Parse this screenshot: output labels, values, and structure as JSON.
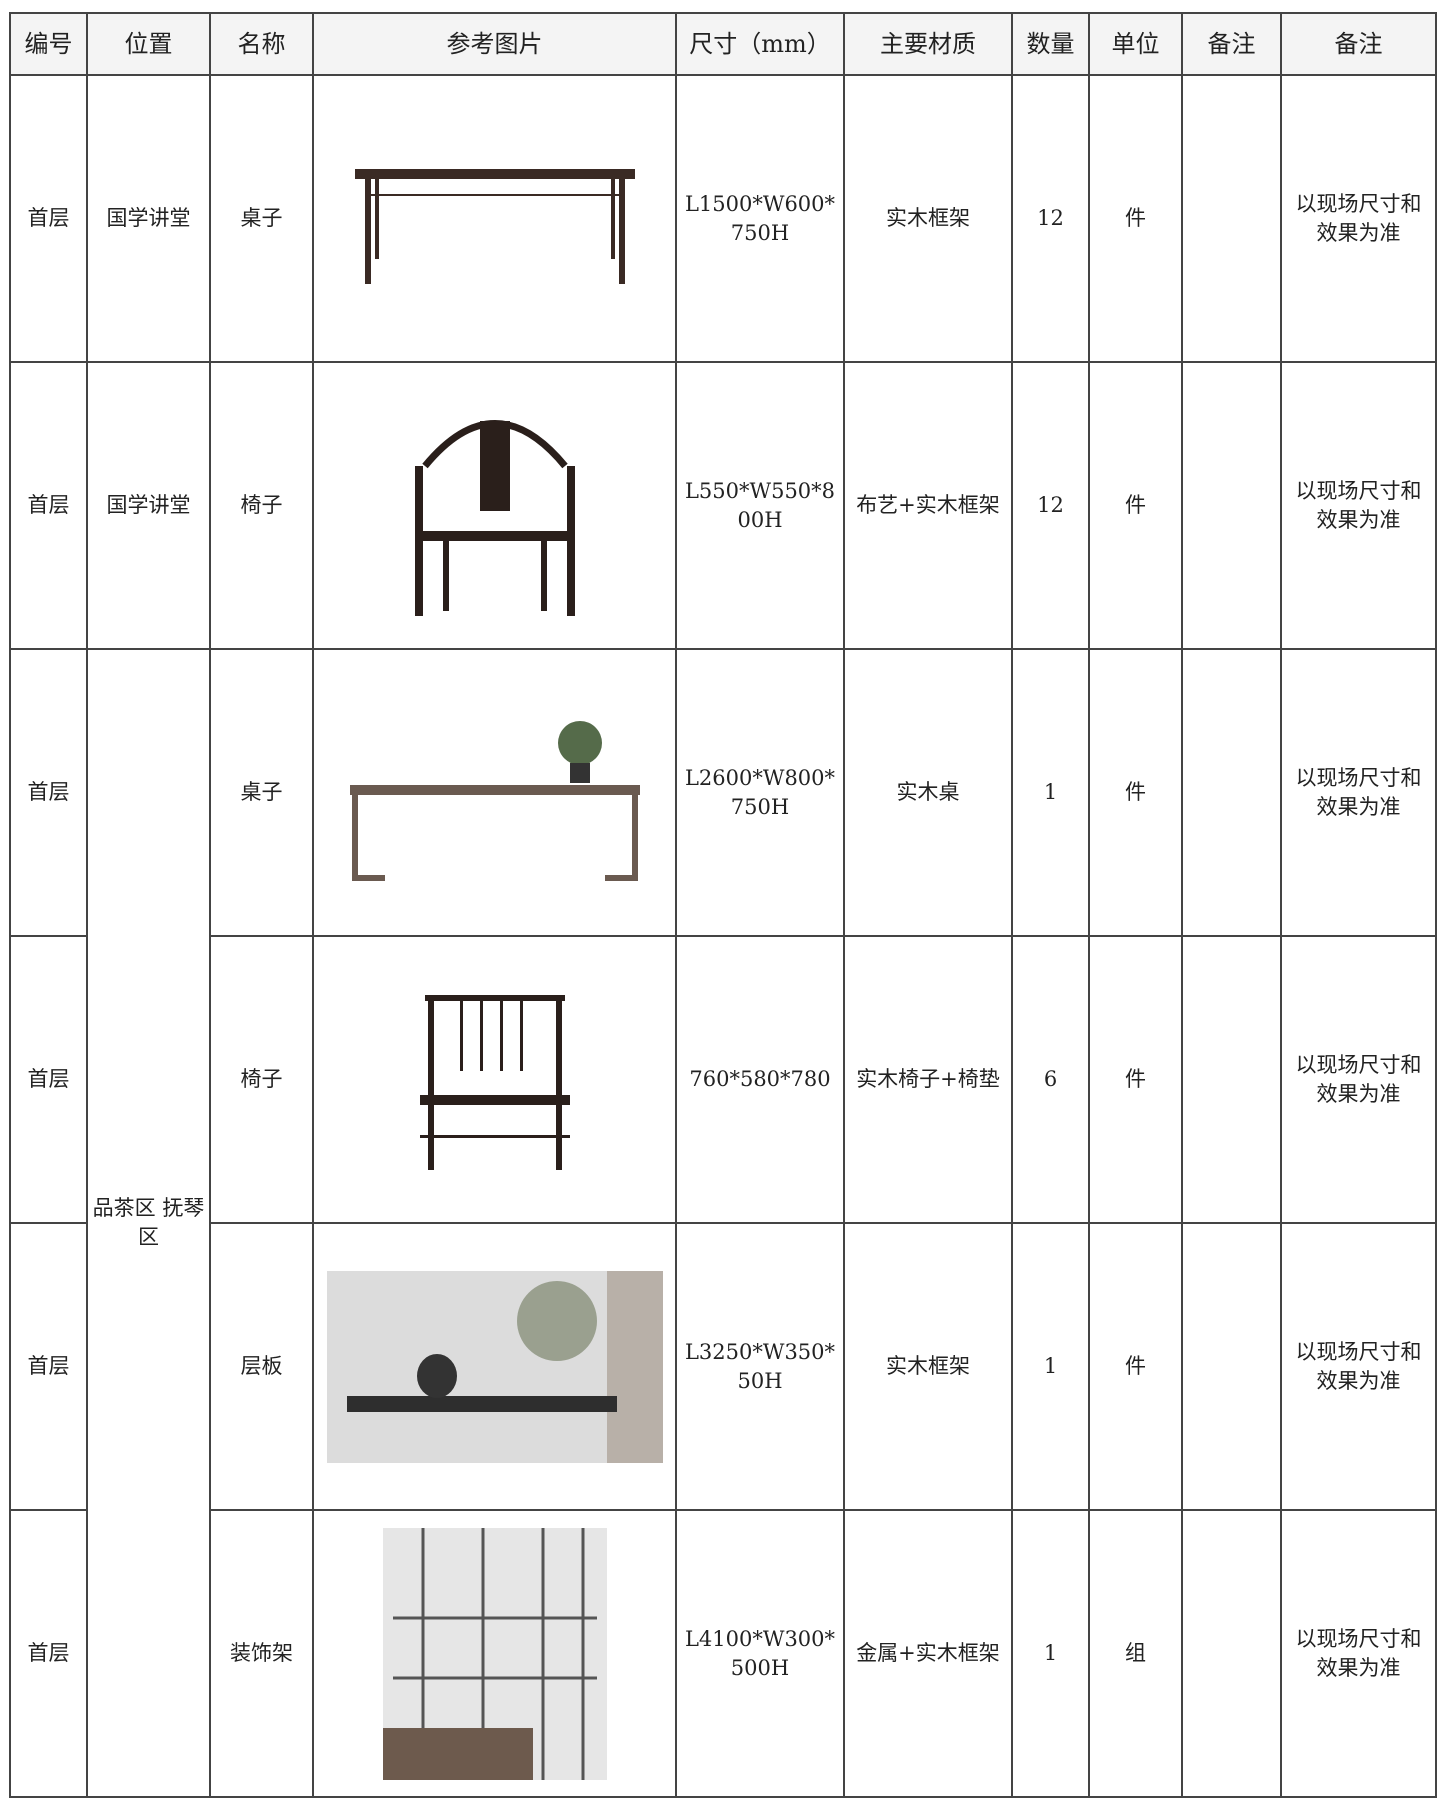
{
  "table": {
    "header": [
      "编号",
      "位置",
      "名称",
      "参考图片",
      "尺寸（mm）",
      "主要材质",
      "数量",
      "单位",
      "备注",
      "备注"
    ],
    "rows": [
      {
        "floor": "首层",
        "location": "国学讲堂",
        "name": "桌子",
        "size": "L1500*W600*750H",
        "material": "实木框架",
        "quantity": 12,
        "unit": "件",
        "note": "以现场尺寸和效果为准"
      },
      {
        "floor": "首层",
        "location": "国学讲堂",
        "name": "椅子",
        "size": "L550*W550*800H",
        "material": "布艺+实木框架",
        "quantity": 12,
        "unit": "件",
        "note": "以现场尺寸和效果为准"
      },
      {
        "floor": "首层",
        "location": "品茶区 抚琴区",
        "name": "桌子",
        "size": "L2600*W800*750H",
        "material": "实木桌",
        "quantity": 1,
        "unit": "件",
        "note": "以现场尺寸和效果为准"
      },
      {
        "floor": "首层",
        "name": "椅子",
        "size": "760*580*780",
        "material": "实木椅子+椅垫",
        "quantity": 6,
        "unit": "件",
        "note": "以现场尺寸和效果为准"
      },
      {
        "floor": "首层",
        "name": "层板",
        "size": "L3250*W350*50H",
        "material": "实木框架",
        "quantity": 1,
        "unit": "件",
        "note": "以现场尺寸和效果为准"
      },
      {
        "floor": "首层",
        "name": "装饰架",
        "size": "L4100*W300*500H",
        "material": "金属+实木框架",
        "quantity": 1,
        "unit": "组",
        "note": "以现场尺寸和效果为准"
      }
    ]
  }
}
